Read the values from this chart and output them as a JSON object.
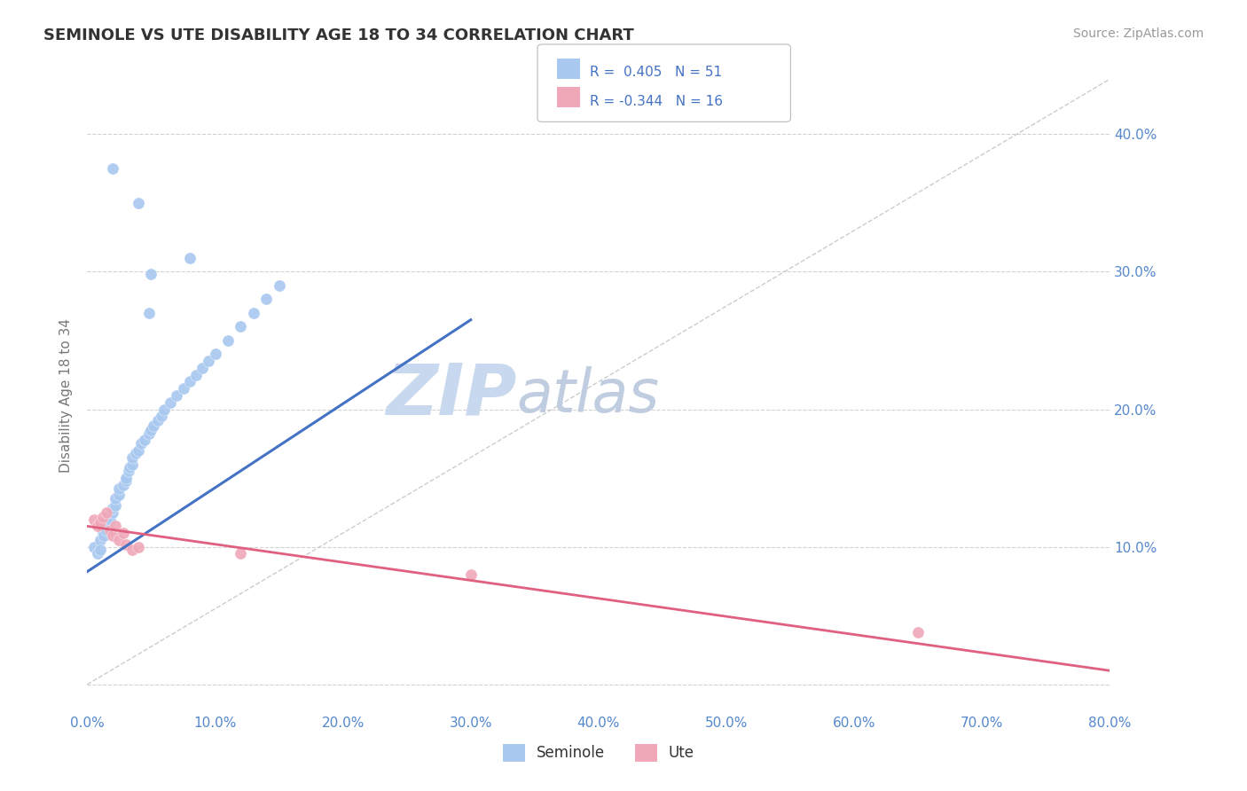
{
  "title": "SEMINOLE VS UTE DISABILITY AGE 18 TO 34 CORRELATION CHART",
  "source_text": "Source: ZipAtlas.com",
  "ylabel": "Disability Age 18 to 34",
  "xlim": [
    0.0,
    0.8
  ],
  "ylim": [
    -0.02,
    0.44
  ],
  "xticks": [
    0.0,
    0.1,
    0.2,
    0.3,
    0.4,
    0.5,
    0.6,
    0.7,
    0.8
  ],
  "yticks": [
    0.0,
    0.1,
    0.2,
    0.3,
    0.4
  ],
  "xticklabels": [
    "0.0%",
    "10.0%",
    "20.0%",
    "30.0%",
    "40.0%",
    "50.0%",
    "60.0%",
    "70.0%",
    "80.0%"
  ],
  "yticklabels_right": [
    "",
    "10.0%",
    "20.0%",
    "30.0%",
    "40.0%"
  ],
  "seminole_R": 0.405,
  "seminole_N": 51,
  "ute_R": -0.344,
  "ute_N": 16,
  "seminole_color": "#a8c8f0",
  "ute_color": "#f0a8b8",
  "seminole_line_color": "#4472c4",
  "ute_line_color": "#e06080",
  "ref_line_color": "#c0c0c0",
  "background_color": "#ffffff",
  "grid_color": "#cccccc",
  "watermark_zip_color": "#c8d8ee",
  "watermark_atlas_color": "#c0cce0",
  "tick_label_color": "#5588cc",
  "legend_label_seminole": "Seminole",
  "legend_label_ute": "Ute",
  "seminole_x": [
    0.005,
    0.008,
    0.01,
    0.01,
    0.012,
    0.013,
    0.015,
    0.015,
    0.016,
    0.018,
    0.02,
    0.02,
    0.022,
    0.022,
    0.025,
    0.025,
    0.028,
    0.03,
    0.03,
    0.032,
    0.033,
    0.035,
    0.035,
    0.038,
    0.04,
    0.042,
    0.045,
    0.048,
    0.05,
    0.052,
    0.055,
    0.058,
    0.06,
    0.065,
    0.07,
    0.075,
    0.08,
    0.085,
    0.09,
    0.095,
    0.1,
    0.11,
    0.12,
    0.13,
    0.14,
    0.15,
    0.04,
    0.048,
    0.02,
    0.05,
    0.08
  ],
  "seminole_y": [
    0.1,
    0.095,
    0.105,
    0.098,
    0.11,
    0.108,
    0.115,
    0.112,
    0.118,
    0.12,
    0.125,
    0.128,
    0.13,
    0.135,
    0.138,
    0.142,
    0.145,
    0.148,
    0.15,
    0.155,
    0.158,
    0.16,
    0.165,
    0.168,
    0.17,
    0.175,
    0.178,
    0.182,
    0.185,
    0.188,
    0.192,
    0.195,
    0.2,
    0.205,
    0.21,
    0.215,
    0.22,
    0.225,
    0.23,
    0.235,
    0.24,
    0.25,
    0.26,
    0.27,
    0.28,
    0.29,
    0.35,
    0.27,
    0.375,
    0.298,
    0.31
  ],
  "ute_x": [
    0.005,
    0.008,
    0.01,
    0.012,
    0.015,
    0.018,
    0.02,
    0.022,
    0.025,
    0.028,
    0.03,
    0.035,
    0.04,
    0.12,
    0.65,
    0.3
  ],
  "ute_y": [
    0.12,
    0.115,
    0.118,
    0.122,
    0.125,
    0.112,
    0.108,
    0.115,
    0.105,
    0.11,
    0.102,
    0.098,
    0.1,
    0.095,
    0.038,
    0.08
  ]
}
